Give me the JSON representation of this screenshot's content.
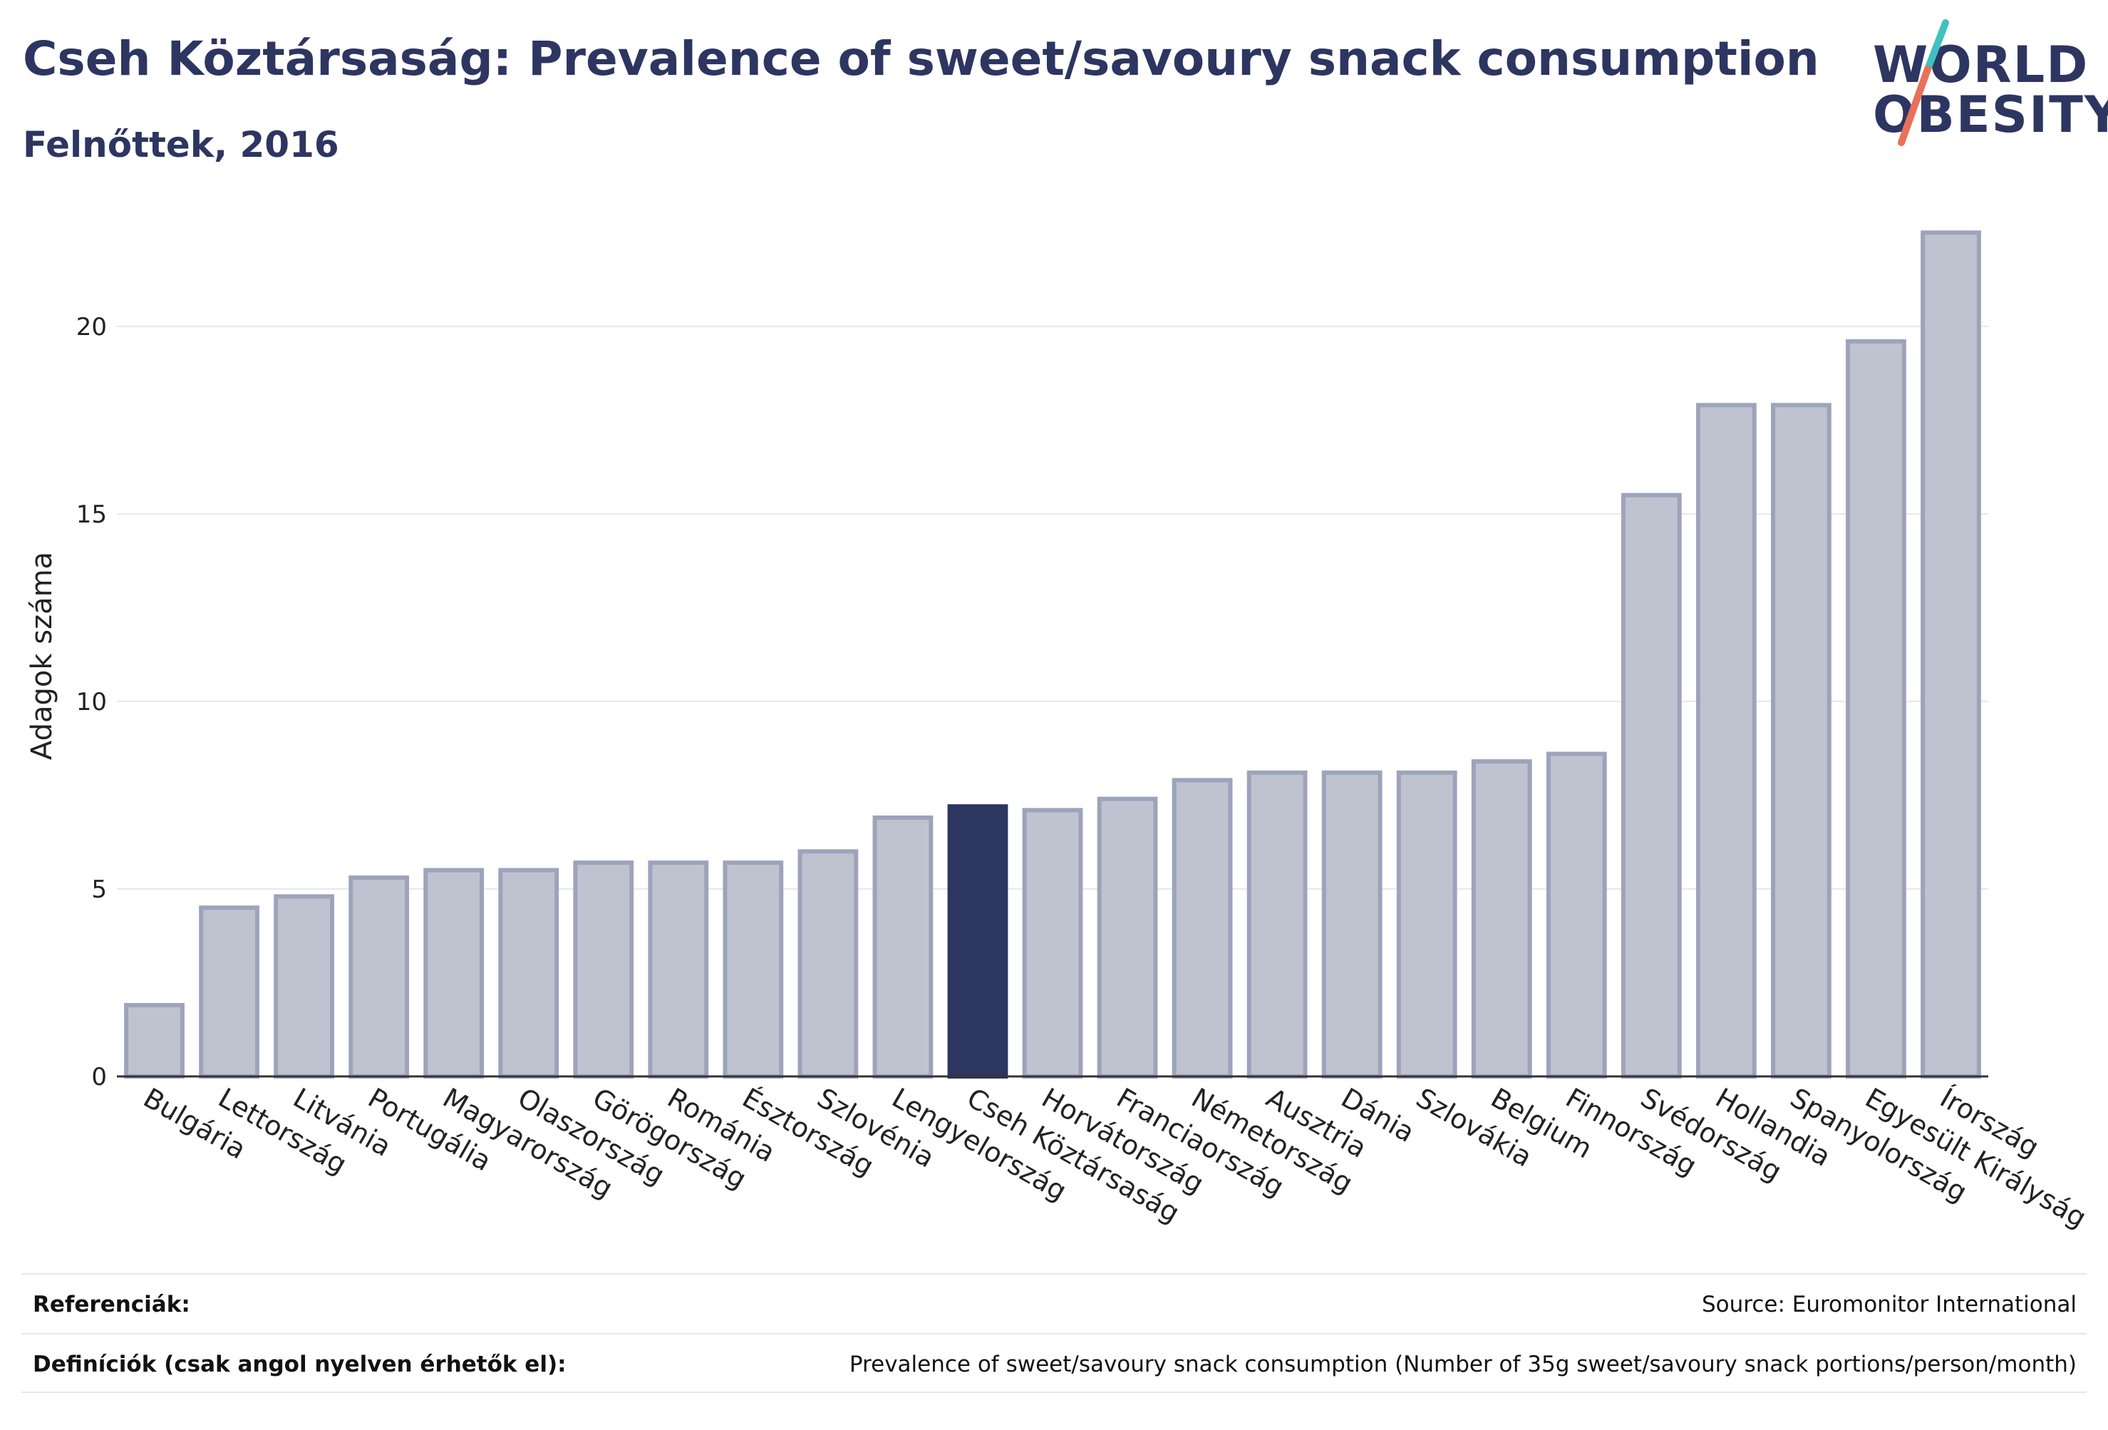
{
  "header": {
    "title": "Cseh Köztársaság: Prevalence of sweet/savoury snack consumption",
    "subtitle": "Felnőttek, 2016"
  },
  "logo": {
    "line1": "WORLD",
    "line2": "OBESITY",
    "accent_colors": [
      "#3fc1c0",
      "#e8715a"
    ]
  },
  "chart_data": {
    "type": "bar",
    "title": "Cseh Köztársaság: Prevalence of sweet/savoury snack consumption",
    "subtitle": "Felnőttek, 2016",
    "xlabel": "",
    "ylabel": "Adagok száma",
    "ylim": [
      0,
      23
    ],
    "yticks": [
      0,
      5,
      10,
      15,
      20
    ],
    "grid": true,
    "highlight": "Cseh Köztársaság",
    "colors": {
      "bar": "#bfc3cf",
      "bar_border": "#9da3bb",
      "highlight": "#2d3561",
      "grid": "#e6e8ee",
      "axis": "#333333"
    },
    "categories": [
      "Bulgária",
      "Lettország",
      "Litvánia",
      "Portugália",
      "Magyarország",
      "Olaszország",
      "Görögország",
      "Románia",
      "Észtország",
      "Szlovénia",
      "Lengyelország",
      "Cseh Köztársaság",
      "Horvátország",
      "Franciaország",
      "Németország",
      "Ausztria",
      "Dánia",
      "Szlovákia",
      "Belgium",
      "Finnország",
      "Svédország",
      "Hollandia",
      "Spanyolország",
      "Egyesült Királyság",
      "Írország"
    ],
    "values": [
      1.9,
      4.5,
      4.8,
      5.3,
      5.5,
      5.5,
      5.7,
      5.7,
      5.7,
      6.0,
      6.9,
      7.2,
      7.1,
      7.4,
      7.9,
      8.1,
      8.1,
      8.1,
      8.4,
      8.6,
      15.5,
      17.9,
      17.9,
      19.6,
      22.5
    ]
  },
  "footer": {
    "references_label": "Referenciák:",
    "references_value": "Source: Euromonitor International",
    "definitions_label": "Definíciók (csak angol nyelven érhetők el):",
    "definitions_value": "Prevalence of sweet/savoury snack consumption (Number of 35g sweet/savoury snack portions/person/month)"
  }
}
